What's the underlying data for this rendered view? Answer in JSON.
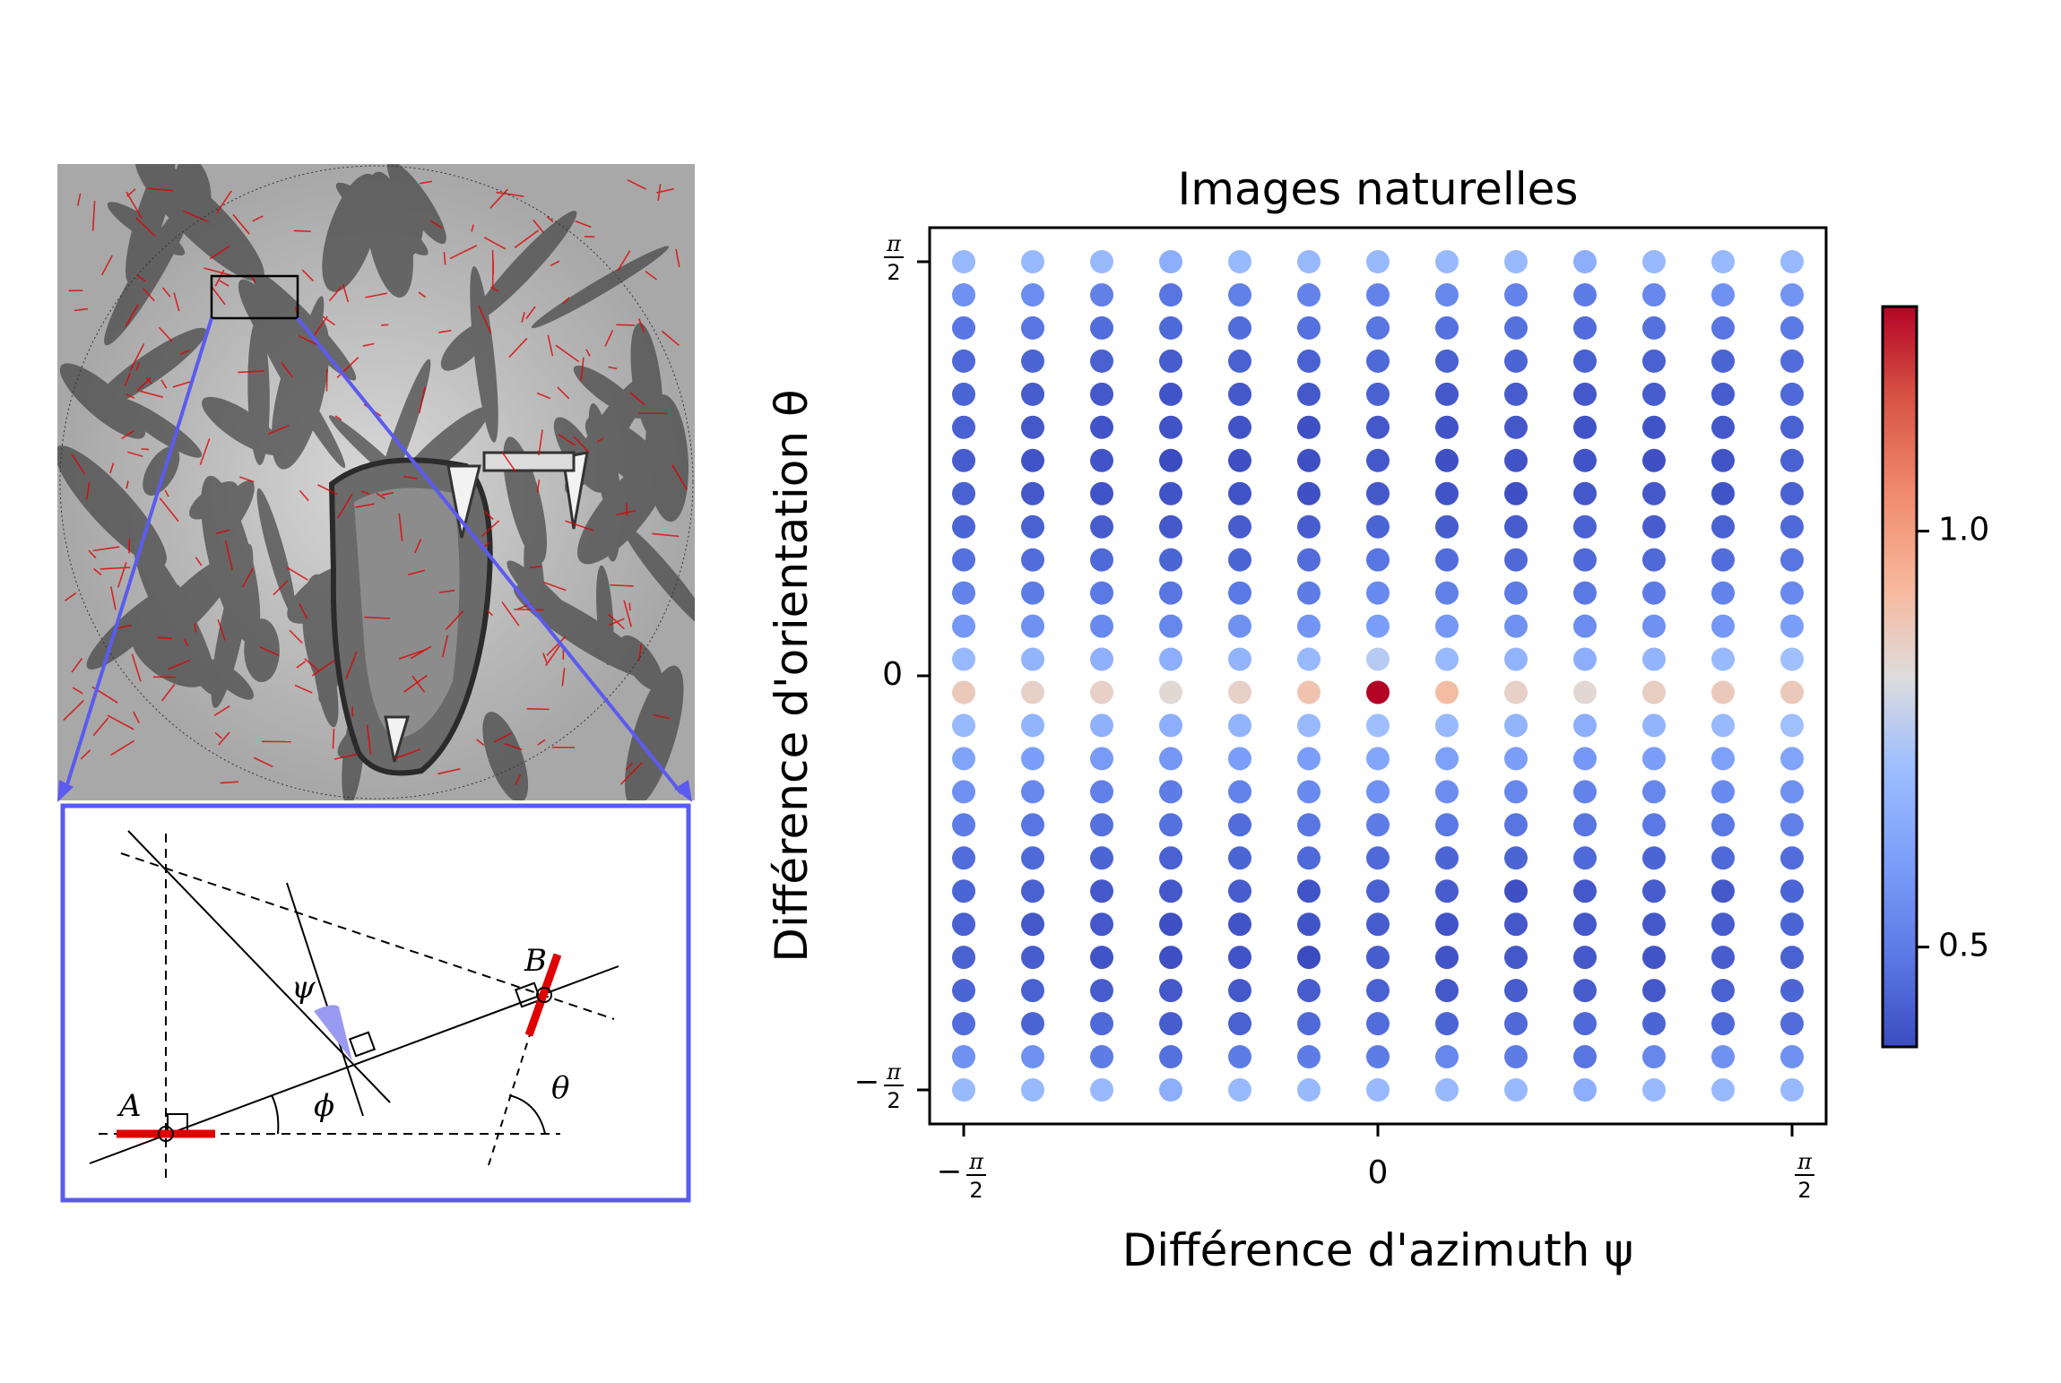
{
  "left_panel": {
    "image_description_icon": "tiger-face-photo",
    "inset_labels": {
      "point_a": "A",
      "point_b": "B",
      "angle_psi": "ψ",
      "angle_phi": "ϕ",
      "angle_theta": "θ"
    },
    "frame_color": "#5b5bf0",
    "edge_color": "#e00000"
  },
  "chart_data": {
    "type": "scatter",
    "title": "Images naturelles",
    "xlabel": "Différence d'azimuth ψ",
    "ylabel": "Différence d'orientation θ",
    "xticks": [
      {
        "value": -1.5708,
        "num": "π",
        "den": "2",
        "sign": "−"
      },
      {
        "value": 0,
        "label": "0"
      },
      {
        "value": 1.5708,
        "num": "π",
        "den": "2",
        "sign": ""
      }
    ],
    "yticks": [
      {
        "value": -1.5708,
        "num": "π",
        "den": "2",
        "sign": "−"
      },
      {
        "value": 0,
        "label": "0"
      },
      {
        "value": 1.5708,
        "num": "π",
        "den": "2",
        "sign": ""
      }
    ],
    "xlim": [
      -1.7,
      1.7
    ],
    "ylim": [
      1.7,
      -1.7
    ],
    "colorbar": {
      "colormap": "coolwarm",
      "min": 0.38,
      "max": 1.27,
      "ticks": [
        0.5,
        1.0
      ],
      "tick_labels": [
        "0.5",
        "1.0"
      ],
      "position": "right"
    },
    "grid": false,
    "n_cols": 13,
    "n_rows": 26,
    "x_values": [
      -1.5708,
      -1.309,
      -1.0472,
      -0.7854,
      -0.5236,
      -0.2618,
      0,
      0.2618,
      0.5236,
      0.7854,
      1.0472,
      1.309,
      1.5708
    ],
    "y_values": [
      -1.5708,
      -1.4451,
      -1.3195,
      -1.1938,
      -1.0681,
      -0.9425,
      -0.8168,
      -0.6912,
      -0.5655,
      -0.4398,
      -0.3142,
      -0.1885,
      -0.0628,
      0.0628,
      0.1885,
      0.3142,
      0.4398,
      0.5655,
      0.6912,
      0.8168,
      0.9425,
      1.0681,
      1.1938,
      1.3195,
      1.4451,
      1.5708
    ],
    "values": [
      [
        0.7,
        0.7,
        0.7,
        0.66,
        0.7,
        0.7,
        0.7,
        0.7,
        0.7,
        0.66,
        0.7,
        0.7,
        0.7
      ],
      [
        0.56,
        0.56,
        0.5,
        0.47,
        0.5,
        0.5,
        0.5,
        0.53,
        0.5,
        0.48,
        0.53,
        0.56,
        0.56
      ],
      [
        0.46,
        0.44,
        0.45,
        0.42,
        0.43,
        0.45,
        0.46,
        0.44,
        0.45,
        0.45,
        0.44,
        0.45,
        0.46
      ],
      [
        0.44,
        0.43,
        0.42,
        0.41,
        0.41,
        0.42,
        0.43,
        0.41,
        0.42,
        0.42,
        0.41,
        0.43,
        0.44
      ],
      [
        0.43,
        0.42,
        0.4,
        0.39,
        0.4,
        0.38,
        0.42,
        0.4,
        0.41,
        0.41,
        0.4,
        0.42,
        0.43
      ],
      [
        0.43,
        0.41,
        0.41,
        0.39,
        0.4,
        0.4,
        0.42,
        0.4,
        0.41,
        0.41,
        0.41,
        0.42,
        0.44
      ],
      [
        0.44,
        0.43,
        0.41,
        0.41,
        0.42,
        0.4,
        0.43,
        0.42,
        0.39,
        0.41,
        0.42,
        0.41,
        0.44
      ],
      [
        0.46,
        0.45,
        0.44,
        0.43,
        0.44,
        0.45,
        0.45,
        0.44,
        0.44,
        0.45,
        0.44,
        0.45,
        0.46
      ],
      [
        0.5,
        0.48,
        0.47,
        0.47,
        0.46,
        0.48,
        0.5,
        0.49,
        0.48,
        0.48,
        0.49,
        0.49,
        0.51
      ],
      [
        0.56,
        0.53,
        0.51,
        0.5,
        0.52,
        0.54,
        0.56,
        0.55,
        0.53,
        0.52,
        0.53,
        0.54,
        0.56
      ],
      [
        0.62,
        0.6,
        0.59,
        0.58,
        0.6,
        0.6,
        0.63,
        0.61,
        0.6,
        0.58,
        0.6,
        0.61,
        0.62
      ],
      [
        0.7,
        0.68,
        0.67,
        0.66,
        0.68,
        0.7,
        0.72,
        0.7,
        0.68,
        0.66,
        0.68,
        0.7,
        0.72
      ],
      [
        0.88,
        0.86,
        0.86,
        0.84,
        0.86,
        0.9,
        1.27,
        0.92,
        0.86,
        0.84,
        0.87,
        0.88,
        0.88
      ],
      [
        0.7,
        0.68,
        0.67,
        0.66,
        0.68,
        0.7,
        0.76,
        0.7,
        0.68,
        0.66,
        0.68,
        0.7,
        0.72
      ],
      [
        0.58,
        0.56,
        0.54,
        0.53,
        0.56,
        0.57,
        0.6,
        0.58,
        0.56,
        0.55,
        0.56,
        0.58,
        0.6
      ],
      [
        0.52,
        0.5,
        0.49,
        0.48,
        0.49,
        0.5,
        0.54,
        0.51,
        0.5,
        0.49,
        0.5,
        0.52,
        0.54
      ],
      [
        0.47,
        0.46,
        0.45,
        0.44,
        0.44,
        0.46,
        0.48,
        0.46,
        0.45,
        0.45,
        0.45,
        0.46,
        0.48
      ],
      [
        0.44,
        0.43,
        0.42,
        0.41,
        0.42,
        0.42,
        0.44,
        0.42,
        0.42,
        0.43,
        0.42,
        0.43,
        0.45
      ],
      [
        0.43,
        0.41,
        0.4,
        0.4,
        0.4,
        0.39,
        0.41,
        0.4,
        0.39,
        0.41,
        0.41,
        0.4,
        0.43
      ],
      [
        0.42,
        0.4,
        0.4,
        0.38,
        0.39,
        0.39,
        0.41,
        0.39,
        0.4,
        0.4,
        0.39,
        0.4,
        0.43
      ],
      [
        0.43,
        0.41,
        0.4,
        0.4,
        0.4,
        0.39,
        0.41,
        0.4,
        0.41,
        0.4,
        0.4,
        0.41,
        0.43
      ],
      [
        0.44,
        0.42,
        0.41,
        0.4,
        0.41,
        0.41,
        0.43,
        0.41,
        0.42,
        0.41,
        0.42,
        0.42,
        0.45
      ],
      [
        0.45,
        0.44,
        0.43,
        0.42,
        0.43,
        0.43,
        0.45,
        0.43,
        0.44,
        0.43,
        0.43,
        0.44,
        0.46
      ],
      [
        0.48,
        0.48,
        0.46,
        0.45,
        0.46,
        0.47,
        0.48,
        0.47,
        0.47,
        0.46,
        0.47,
        0.48,
        0.49
      ],
      [
        0.56,
        0.55,
        0.51,
        0.48,
        0.51,
        0.52,
        0.52,
        0.53,
        0.52,
        0.5,
        0.53,
        0.56,
        0.57
      ],
      [
        0.7,
        0.7,
        0.7,
        0.66,
        0.7,
        0.7,
        0.7,
        0.7,
        0.7,
        0.66,
        0.7,
        0.7,
        0.7
      ]
    ]
  }
}
